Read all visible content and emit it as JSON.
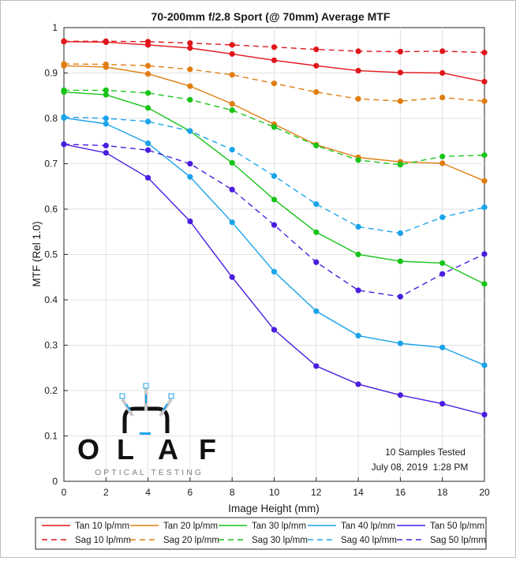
{
  "chart_data": {
    "type": "line",
    "title": "70-200mm f/2.8 Sport (@ 70mm) Average MTF",
    "xlabel": "Image Height (mm)",
    "ylabel": "MTF (Rel 1.0)",
    "xlim": [
      0,
      20
    ],
    "ylim": [
      0,
      1
    ],
    "grid": true,
    "x": [
      0,
      2,
      4,
      6,
      8,
      10,
      12,
      14,
      16,
      18,
      20
    ],
    "x_tick_labels": [
      "0",
      "2",
      "4",
      "6",
      "8",
      "10",
      "12",
      "14",
      "16",
      "18",
      "20"
    ],
    "y_ticks": [
      0,
      0.1,
      0.2,
      0.3,
      0.4,
      0.5,
      0.6,
      0.7,
      0.8,
      0.9,
      1
    ],
    "y_tick_labels": [
      "0",
      "0.1",
      "0.2",
      "0.3",
      "0.4",
      "0.5",
      "0.6",
      "0.7",
      "0.8",
      "0.9",
      "1"
    ],
    "legend_position": "bottom",
    "series": [
      {
        "name": "Tan 10 lp/mm",
        "color": "#e0161c",
        "dash": false,
        "values": [
          0.969,
          0.968,
          0.962,
          0.955,
          0.942,
          0.928,
          0.916,
          0.905,
          0.901,
          0.9,
          0.881
        ]
      },
      {
        "name": "Tan 20 lp/mm",
        "color": "#e07d10",
        "dash": false,
        "values": [
          0.916,
          0.913,
          0.898,
          0.871,
          0.832,
          0.787,
          0.742,
          0.714,
          0.704,
          0.701,
          0.662
        ]
      },
      {
        "name": "Tan 30 lp/mm",
        "color": "#18c418",
        "dash": false,
        "values": [
          0.858,
          0.852,
          0.823,
          0.772,
          0.702,
          0.621,
          0.549,
          0.5,
          0.485,
          0.481,
          0.435
        ]
      },
      {
        "name": "Tan 40 lp/mm",
        "color": "#1aa3ea",
        "dash": false,
        "values": [
          0.801,
          0.788,
          0.745,
          0.671,
          0.571,
          0.462,
          0.375,
          0.321,
          0.304,
          0.295,
          0.256
        ]
      },
      {
        "name": "Tan 50 lp/mm",
        "color": "#4a1de0",
        "dash": false,
        "values": [
          0.743,
          0.724,
          0.669,
          0.573,
          0.45,
          0.334,
          0.254,
          0.214,
          0.19,
          0.171,
          0.147
        ]
      },
      {
        "name": "Sag 10 lp/mm",
        "color": "#e0161c",
        "dash": true,
        "values": [
          0.97,
          0.97,
          0.969,
          0.966,
          0.962,
          0.957,
          0.952,
          0.948,
          0.947,
          0.948,
          0.945
        ]
      },
      {
        "name": "Sag 20 lp/mm",
        "color": "#e07d10",
        "dash": true,
        "values": [
          0.92,
          0.919,
          0.916,
          0.908,
          0.896,
          0.877,
          0.858,
          0.843,
          0.838,
          0.846,
          0.838
        ]
      },
      {
        "name": "Sag 30 lp/mm",
        "color": "#18c418",
        "dash": true,
        "values": [
          0.862,
          0.862,
          0.856,
          0.841,
          0.818,
          0.781,
          0.74,
          0.708,
          0.698,
          0.716,
          0.719
        ]
      },
      {
        "name": "Sag 40 lp/mm",
        "color": "#1aa3ea",
        "dash": true,
        "values": [
          0.803,
          0.8,
          0.793,
          0.772,
          0.731,
          0.673,
          0.611,
          0.561,
          0.547,
          0.582,
          0.604
        ]
      },
      {
        "name": "Sag 50 lp/mm",
        "color": "#4a1de0",
        "dash": true,
        "values": [
          0.743,
          0.74,
          0.73,
          0.7,
          0.643,
          0.565,
          0.483,
          0.421,
          0.407,
          0.457,
          0.501
        ]
      }
    ],
    "annotations": {
      "samples": "10 Samples Tested",
      "date": "July 08, 2019  1:28 PM"
    }
  },
  "logo": {
    "name": "OLAF",
    "letters": [
      "O",
      "L",
      "A",
      "F"
    ],
    "tagline": "OPTICAL TESTING"
  }
}
